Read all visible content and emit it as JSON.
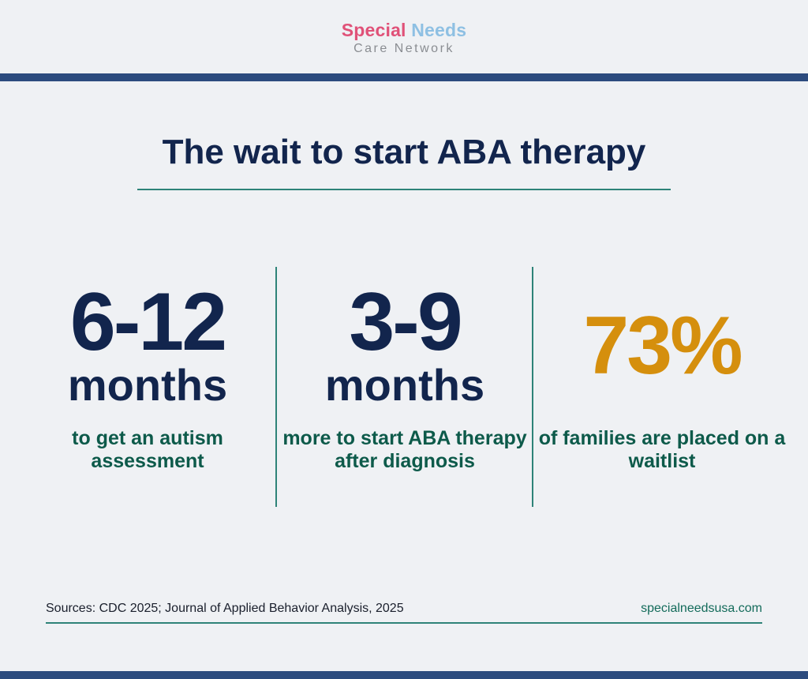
{
  "logo": {
    "word1": "Special",
    "word2": "Needs",
    "subtitle": "Care Network",
    "colors": {
      "word1": "#e05178",
      "word2": "#8ec0e3"
    }
  },
  "title": "The wait to start ABA therapy",
  "stats": [
    {
      "value": "6-12",
      "unit": "months",
      "description": "to get an autism assessment"
    },
    {
      "value": "3-9",
      "unit": "months",
      "description": "more to start ABA therapy after diagnosis"
    },
    {
      "value": "73%",
      "unit": "",
      "description": "of families are placed on a waitlist"
    }
  ],
  "footer": {
    "sources": "Sources: CDC 2025; Journal of Applied Behavior Analysis, 2025",
    "website": "specialneedsusa.com"
  },
  "colors": {
    "navy": "#12254d",
    "teal": "#0d5a4a",
    "accent_orange": "#d58f0d",
    "bar": "#2c4b7e",
    "background": "#eff1f4"
  }
}
